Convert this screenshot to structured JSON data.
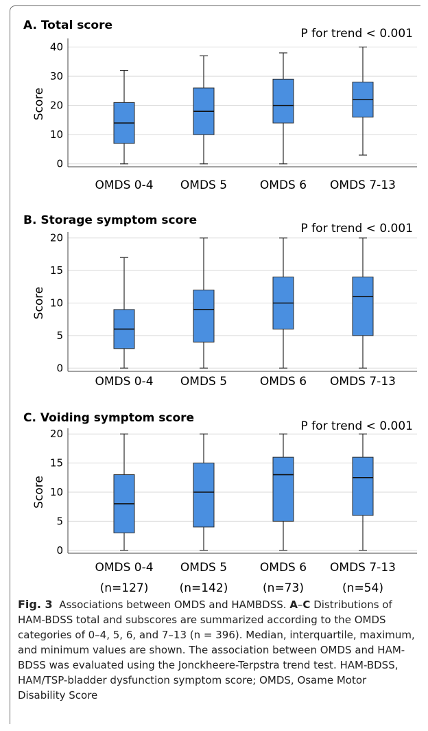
{
  "chart_data": [
    {
      "type": "box",
      "title": "A. Total score",
      "annotation": "P for trend < 0.001",
      "ylabel": "Score",
      "categories": [
        "OMDS 0-4",
        "OMDS 5",
        "OMDS 6",
        "OMDS 7-13"
      ],
      "yticks": [
        0,
        10,
        20,
        30,
        40
      ],
      "ylim": [
        -1,
        42
      ],
      "boxes": [
        {
          "min": 0,
          "q1": 7,
          "median": 14,
          "q3": 21,
          "max": 32
        },
        {
          "min": 0,
          "q1": 10,
          "median": 18,
          "q3": 26,
          "max": 37
        },
        {
          "min": 0,
          "q1": 14,
          "median": 20,
          "q3": 29,
          "max": 38
        },
        {
          "min": 3,
          "q1": 16,
          "median": 22,
          "q3": 28,
          "max": 40
        }
      ]
    },
    {
      "type": "box",
      "title": "B. Storage symptom score",
      "annotation": "P for trend < 0.001",
      "ylabel": "Score",
      "categories": [
        "OMDS 0-4",
        "OMDS 5",
        "OMDS 6",
        "OMDS 7-13"
      ],
      "yticks": [
        0,
        5,
        10,
        15,
        20
      ],
      "ylim": [
        -0.5,
        20.5
      ],
      "boxes": [
        {
          "min": 0,
          "q1": 3,
          "median": 6,
          "q3": 9,
          "max": 17
        },
        {
          "min": 0,
          "q1": 4,
          "median": 9,
          "q3": 12,
          "max": 20
        },
        {
          "min": 0,
          "q1": 6,
          "median": 10,
          "q3": 14,
          "max": 20
        },
        {
          "min": 0,
          "q1": 5,
          "median": 11,
          "q3": 14,
          "max": 20
        }
      ]
    },
    {
      "type": "box",
      "title": "C. Voiding symptom score",
      "annotation": "P for trend < 0.001",
      "ylabel": "Score",
      "categories": [
        "OMDS 0-4",
        "OMDS 5",
        "OMDS 6",
        "OMDS 7-13"
      ],
      "sample_sizes": [
        "(n=127)",
        "(n=142)",
        "(n=73)",
        "(n=54)"
      ],
      "yticks": [
        0,
        5,
        10,
        15,
        20
      ],
      "ylim": [
        -0.5,
        20.5
      ],
      "boxes": [
        {
          "min": 0,
          "q1": 3,
          "median": 8,
          "q3": 13,
          "max": 20
        },
        {
          "min": 0,
          "q1": 4,
          "median": 10,
          "q3": 15,
          "max": 20
        },
        {
          "min": 0,
          "q1": 5,
          "median": 13,
          "q3": 16,
          "max": 20
        },
        {
          "min": 0,
          "q1": 6,
          "median": 12.5,
          "q3": 16,
          "max": 20
        }
      ]
    }
  ],
  "colors": {
    "box_fill": "#4a8fe0",
    "box_stroke": "#2a2a2a",
    "grid": "#d9d9d9"
  },
  "caption": {
    "lead": "Fig. 3",
    "text1": "Associations between OMDS and HAMBDSS. ",
    "bold_a": "A",
    "dash": "–",
    "bold_c": "C",
    "text2": "Distributions of HAM-BDSS total and subscores are summarized according to the OMDS categories of 0–4, 5, 6, and 7–13 (n = 396). Median, interquartile, maximum, and minimum values are shown. The association between OMDS and HAM-BDSS was evaluated using the Jonckheere-Terpstra trend test. HAM-BDSS, HAM/TSP-bladder dysfunction symptom score; OMDS, Osame Motor Disability Score"
  }
}
